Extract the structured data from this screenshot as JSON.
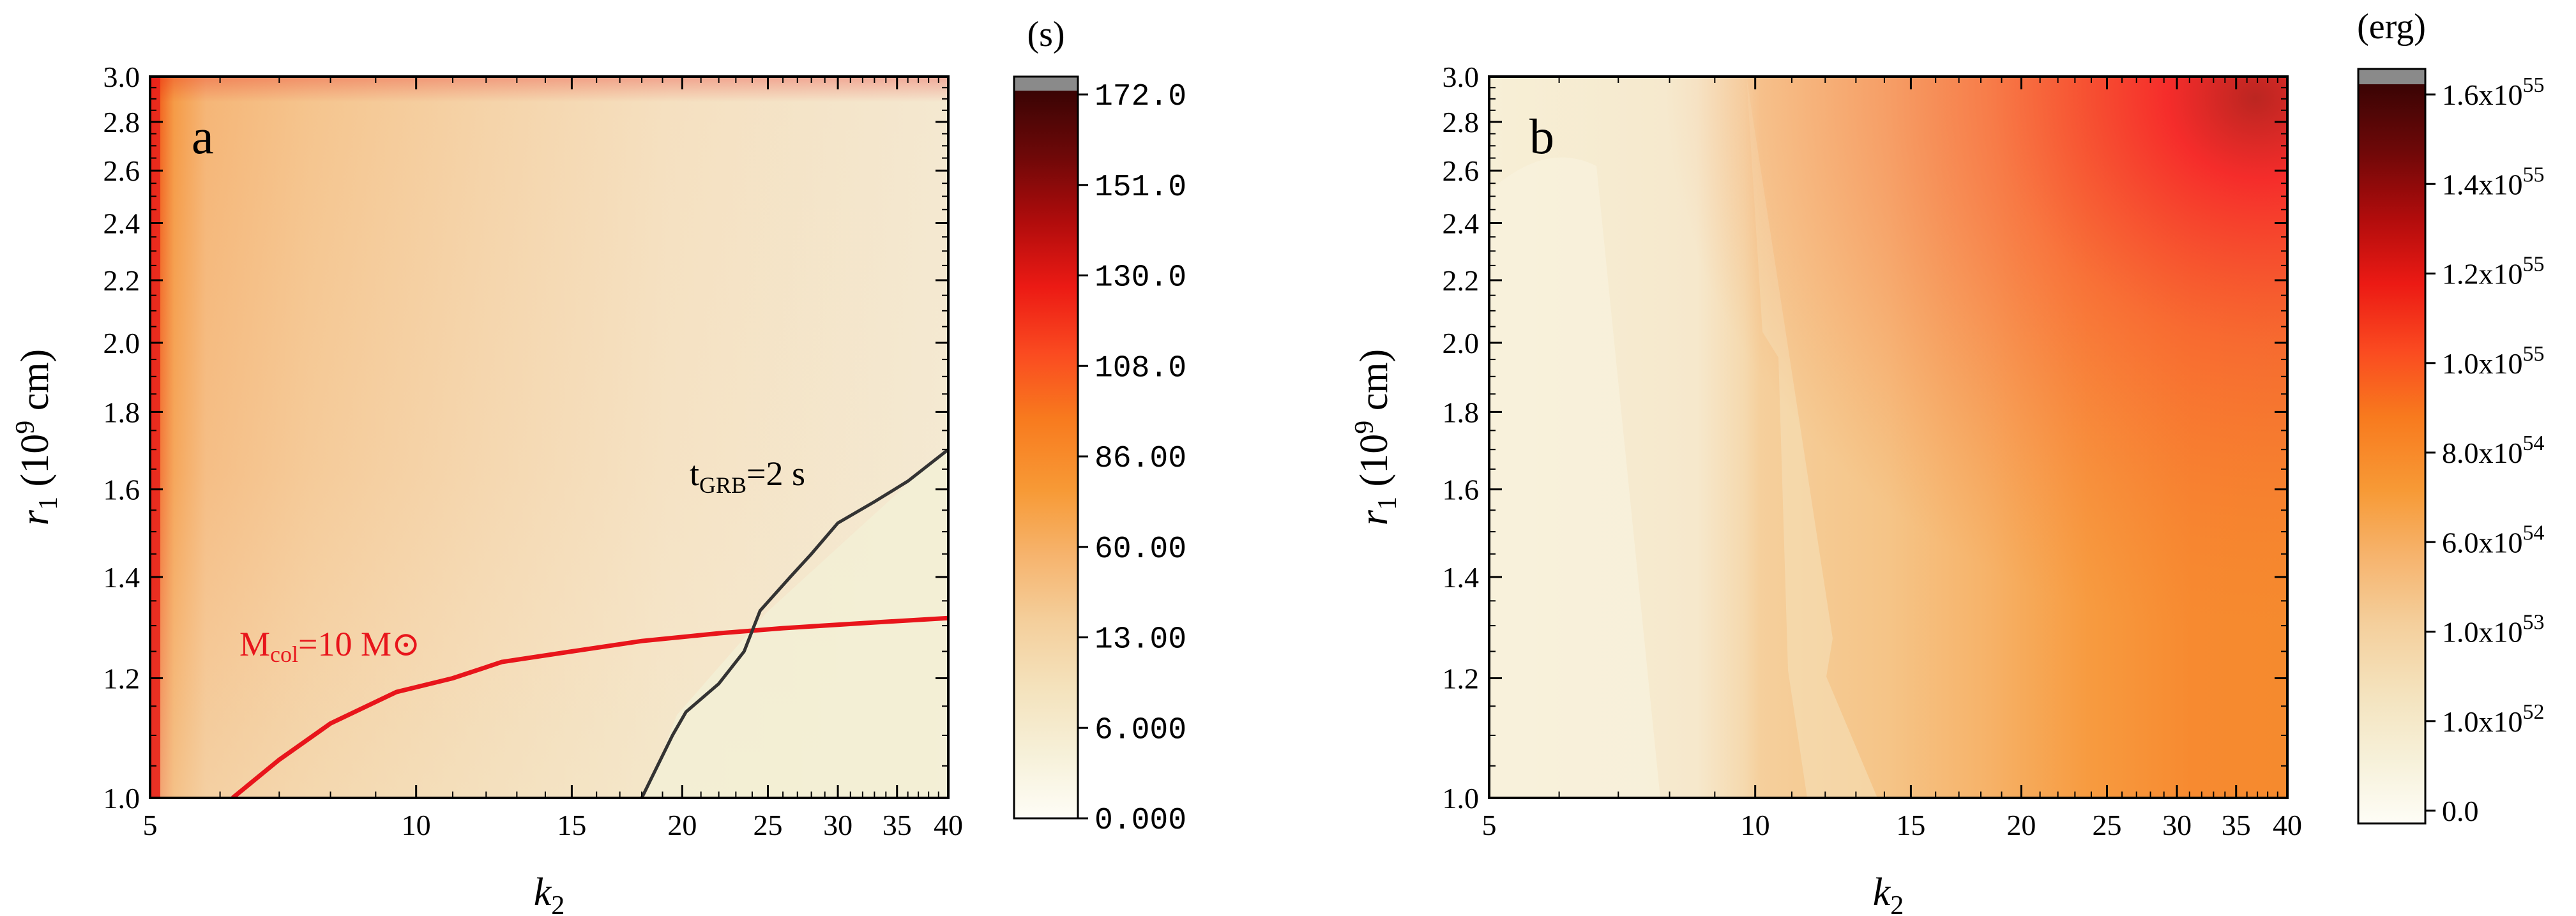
{
  "chart_data": [
    {
      "type": "heatmap",
      "panel_label": "a",
      "colorbar_unit": "(s)",
      "colorbar_ticks": [
        "0.000",
        "6.000",
        "13.00",
        "60.00",
        "86.00",
        "108.0",
        "130.0",
        "151.0",
        "172.0"
      ],
      "xlabel": {
        "main": "k",
        "sub": "2"
      },
      "ylabel": {
        "main": "r",
        "sub": "1",
        "rest": " (10",
        "sup": "9",
        "tail": " cm)"
      },
      "xlim": [
        5,
        40
      ],
      "ylim": [
        1.0,
        3.0
      ],
      "x_scale": "log",
      "y_scale": "log",
      "x_ticks": [
        5,
        10,
        15,
        20,
        25,
        30,
        35,
        40
      ],
      "x_tick_labels": [
        "5",
        "10",
        "15",
        "20",
        "25",
        "30",
        "35",
        "40"
      ],
      "y_ticks": [
        1.0,
        1.2,
        1.4,
        1.6,
        1.8,
        2.0,
        2.2,
        2.4,
        2.6,
        2.8,
        3.0
      ],
      "y_tick_labels": [
        "1.0",
        "1.2",
        "1.4",
        "1.6",
        "1.8",
        "2.0",
        "2.2",
        "2.4",
        "2.6",
        "2.8",
        "3.0"
      ],
      "contours": [
        {
          "name": "M_col = 10 M_sun",
          "color": "#e8151b",
          "label": {
            "main": "M",
            "sub": "col",
            "rest": "=10 M",
            "sym": "⊙"
          },
          "points": [
            [
              6.2,
              1.0
            ],
            [
              7.0,
              1.06
            ],
            [
              8.0,
              1.12
            ],
            [
              9.5,
              1.175
            ],
            [
              11,
              1.2
            ],
            [
              12.5,
              1.23
            ],
            [
              15,
              1.25
            ],
            [
              18,
              1.27
            ],
            [
              22,
              1.285
            ],
            [
              26,
              1.295
            ],
            [
              32,
              1.305
            ],
            [
              40,
              1.315
            ]
          ]
        },
        {
          "name": "t_GRB = 2 s",
          "color": "#333333",
          "label": {
            "main": "t",
            "sub": "GRB",
            "rest": "=2 s"
          },
          "points": [
            [
              18,
              1.0
            ],
            [
              19.5,
              1.1
            ],
            [
              20.2,
              1.14
            ],
            [
              22,
              1.19
            ],
            [
              23.5,
              1.25
            ],
            [
              24.5,
              1.33
            ],
            [
              26.5,
              1.4
            ],
            [
              28,
              1.45
            ],
            [
              30,
              1.52
            ],
            [
              33,
              1.57
            ],
            [
              36,
              1.62
            ],
            [
              40,
              1.7
            ]
          ]
        }
      ]
    },
    {
      "type": "heatmap",
      "panel_label": "b",
      "colorbar_unit": "(erg)",
      "colorbar_ticks": [
        {
          "mant": "0.0",
          "exp": ""
        },
        {
          "mant": "1.0x10",
          "exp": "52"
        },
        {
          "mant": "1.0x10",
          "exp": "53"
        },
        {
          "mant": "6.0x10",
          "exp": "54"
        },
        {
          "mant": "8.0x10",
          "exp": "54"
        },
        {
          "mant": "1.0x10",
          "exp": "55"
        },
        {
          "mant": "1.2x10",
          "exp": "55"
        },
        {
          "mant": "1.4x10",
          "exp": "55"
        },
        {
          "mant": "1.6x10",
          "exp": "55"
        }
      ],
      "xlabel": {
        "main": "k",
        "sub": "2"
      },
      "ylabel": {
        "main": "r",
        "sub": "1",
        "rest": " (10",
        "sup": "9",
        "tail": " cm)"
      },
      "xlim": [
        5,
        40
      ],
      "ylim": [
        1.0,
        3.0
      ],
      "x_scale": "log",
      "y_scale": "log",
      "x_ticks": [
        5,
        10,
        15,
        20,
        25,
        30,
        35,
        40
      ],
      "x_tick_labels": [
        "5",
        "10",
        "15",
        "20",
        "25",
        "30",
        "35",
        "40"
      ],
      "y_ticks": [
        1.0,
        1.2,
        1.4,
        1.6,
        1.8,
        2.0,
        2.2,
        2.4,
        2.6,
        2.8,
        3.0
      ],
      "y_tick_labels": [
        "1.0",
        "1.2",
        "1.4",
        "1.6",
        "1.8",
        "2.0",
        "2.2",
        "2.4",
        "2.6",
        "2.8",
        "3.0"
      ]
    }
  ],
  "colormap": [
    "#fefdf6",
    "#f6f0d8",
    "#f4e2bc",
    "#f4cf9c",
    "#f6b46e",
    "#f79a36",
    "#f87a1e",
    "#fa4a20",
    "#ec1a14",
    "#b00c0c",
    "#6e0808",
    "#3a0404"
  ]
}
